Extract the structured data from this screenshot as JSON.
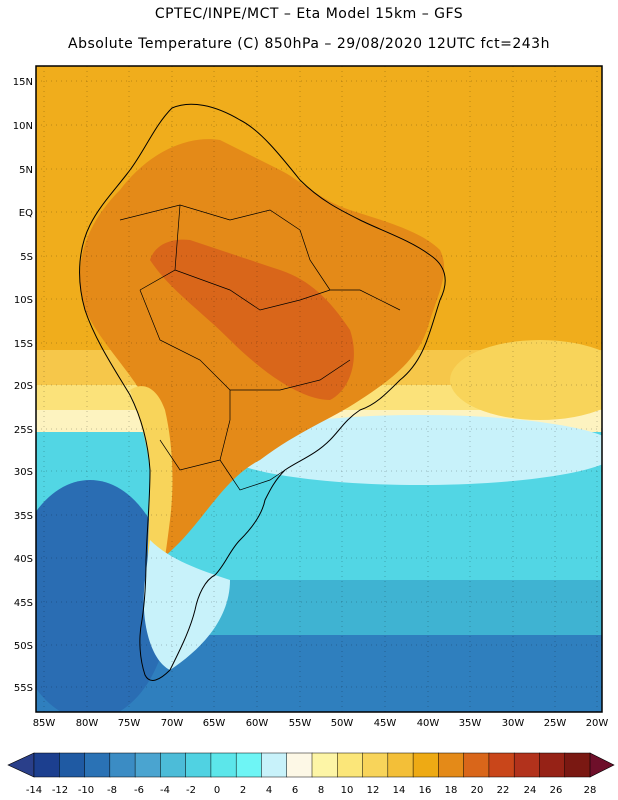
{
  "header": {
    "line1": "CPTEC/INPE/MCT –  Eta Model 15km – GFS",
    "line2": "Absolute Temperature (C) 850hPa – 29/08/2020 12UTC fct=243h"
  },
  "map": {
    "lat_labels": [
      "15N",
      "10N",
      "5N",
      "EQ",
      "5S",
      "10S",
      "15S",
      "20S",
      "25S",
      "30S",
      "35S",
      "40S",
      "45S",
      "50S",
      "55S"
    ],
    "lon_labels": [
      "85W",
      "80W",
      "75W",
      "70W",
      "65W",
      "60W",
      "55W",
      "50W",
      "45W",
      "40W",
      "35W",
      "30W",
      "25W",
      "20W"
    ]
  },
  "legend": {
    "ticks": [
      "-14",
      "-12",
      "-10",
      "-8",
      "-6",
      "-4",
      "-2",
      "0",
      "2",
      "4",
      "6",
      "8",
      "10",
      "12",
      "14",
      "16",
      "18",
      "20",
      "22",
      "24",
      "26",
      "28"
    ],
    "colors": [
      "#1c3f8f",
      "#1f5aa3",
      "#2a72b5",
      "#3b8cc4",
      "#4aa4d0",
      "#4cbcd8",
      "#50d2e2",
      "#5ce6ea",
      "#6ef5f5",
      "#c8f2fa",
      "#fdf8e6",
      "#fdf5a6",
      "#fbe679",
      "#f8d45a",
      "#f3bf38",
      "#eeaa14",
      "#e48a18",
      "#d9661a",
      "#c9461a",
      "#b2321c",
      "#962216",
      "#7a1812"
    ],
    "under_color": "#2a3f8a",
    "over_color": "#6e0f2a"
  }
}
